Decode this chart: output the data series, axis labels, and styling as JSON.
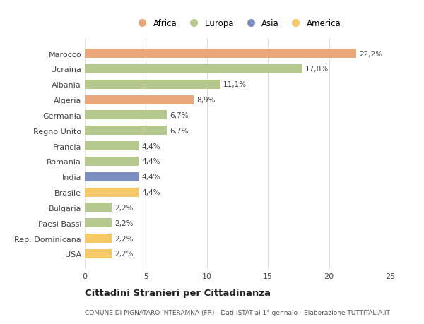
{
  "countries": [
    "Marocco",
    "Ucraina",
    "Albania",
    "Algeria",
    "Germania",
    "Regno Unito",
    "Francia",
    "Romania",
    "India",
    "Brasile",
    "Bulgaria",
    "Paesi Bassi",
    "Rep. Dominicana",
    "USA"
  ],
  "values": [
    22.2,
    17.8,
    11.1,
    8.9,
    6.7,
    6.7,
    4.4,
    4.4,
    4.4,
    4.4,
    2.2,
    2.2,
    2.2,
    2.2
  ],
  "labels": [
    "22,2%",
    "17,8%",
    "11,1%",
    "8,9%",
    "6,7%",
    "6,7%",
    "4,4%",
    "4,4%",
    "4,4%",
    "4,4%",
    "2,2%",
    "2,2%",
    "2,2%",
    "2,2%"
  ],
  "colors": [
    "#e8a87c",
    "#b5c98e",
    "#b5c98e",
    "#e8a87c",
    "#b5c98e",
    "#b5c98e",
    "#b5c98e",
    "#b5c98e",
    "#7b8fc0",
    "#f5c965",
    "#b5c98e",
    "#b5c98e",
    "#f5c965",
    "#f5c965"
  ],
  "legend": [
    {
      "label": "Africa",
      "color": "#e8a87c"
    },
    {
      "label": "Europa",
      "color": "#b5c98e"
    },
    {
      "label": "Asia",
      "color": "#7b8fc0"
    },
    {
      "label": "America",
      "color": "#f5c965"
    }
  ],
  "title": "Cittadini Stranieri per Cittadinanza",
  "subtitle": "COMUNE DI PIGNATARO INTERAMNA (FR) - Dati ISTAT al 1° gennaio - Elaborazione TUTTITALIA.IT",
  "xlim": [
    0,
    25
  ],
  "xticks": [
    0,
    5,
    10,
    15,
    20,
    25
  ],
  "background_color": "#ffffff",
  "grid_color": "#e0e0e0",
  "bar_height": 0.6
}
